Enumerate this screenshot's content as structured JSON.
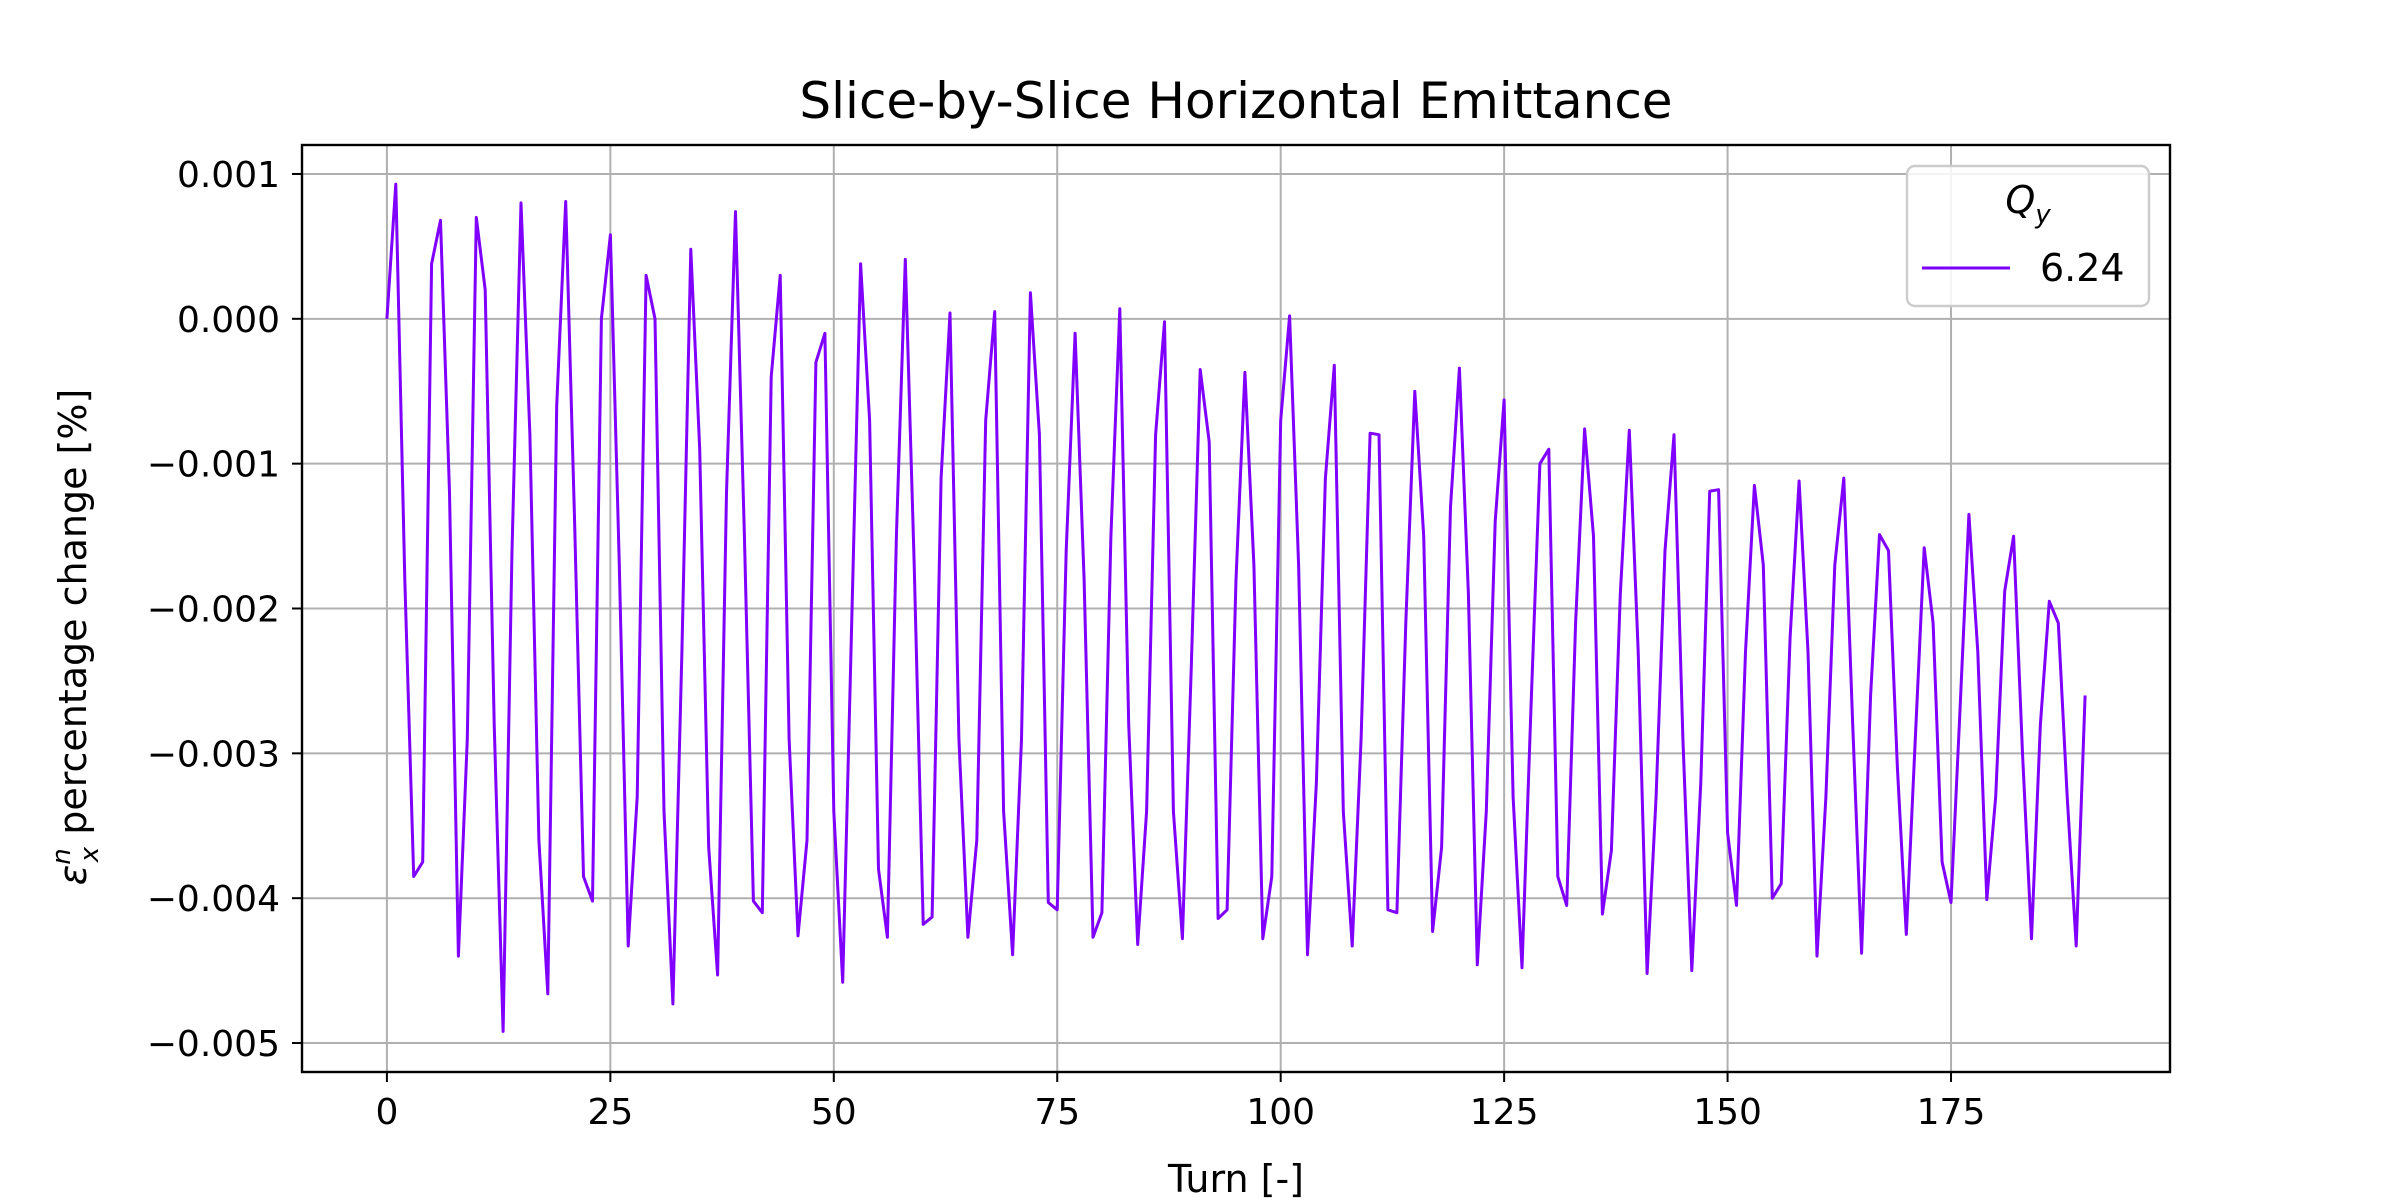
{
  "chart_data": {
    "type": "line",
    "title": "Slice-by-Slice Horizontal Emittance",
    "xlabel": "Turn [-]",
    "ylabel_base": "ε",
    "ylabel_sup": "n",
    "ylabel_sub": "x",
    "ylabel_rest": " percentage change [%]",
    "xlim": [
      -9.5,
      199.5
    ],
    "ylim": [
      -0.0052,
      0.0012
    ],
    "xticks": [
      0,
      25,
      50,
      75,
      100,
      125,
      150,
      175
    ],
    "xtick_labels": [
      "0",
      "25",
      "50",
      "75",
      "100",
      "125",
      "150",
      "175"
    ],
    "yticks": [
      0.001,
      0.0,
      -0.001,
      -0.002,
      -0.003,
      -0.004,
      -0.005
    ],
    "ytick_labels": [
      "0.001",
      "0.000",
      "−0.001",
      "−0.002",
      "−0.003",
      "−0.004",
      "−0.005"
    ],
    "grid": true,
    "legend": {
      "placement": "top-right",
      "title_base": "Q",
      "title_sub": "y"
    },
    "series": [
      {
        "name": "6.24",
        "color": "#7f00ff",
        "x": [
          0,
          1,
          2,
          3,
          4,
          5,
          6,
          7,
          8,
          9,
          10,
          11,
          12,
          13,
          14,
          15,
          16,
          17,
          18,
          19,
          20,
          21,
          22,
          23,
          24,
          25,
          26,
          27,
          28,
          29,
          30,
          31,
          32,
          33,
          34,
          35,
          36,
          37,
          38,
          39,
          40,
          41,
          42,
          43,
          44,
          45,
          46,
          47,
          48,
          49,
          50,
          51,
          52,
          53,
          54,
          55,
          56,
          57,
          58,
          59,
          60,
          61,
          62,
          63,
          64,
          65,
          66,
          67,
          68,
          69,
          70,
          71,
          72,
          73,
          74,
          75,
          76,
          77,
          78,
          79,
          80,
          81,
          82,
          83,
          84,
          85,
          86,
          87,
          88,
          89,
          90,
          91,
          92,
          93,
          94,
          95,
          96,
          97,
          98,
          99,
          100,
          101,
          102,
          103,
          104,
          105,
          106,
          107,
          108,
          109,
          110,
          111,
          112,
          113,
          114,
          115,
          116,
          117,
          118,
          119,
          120,
          121,
          122,
          123,
          124,
          125,
          126,
          127,
          128,
          129,
          130,
          131,
          132,
          133,
          134,
          135,
          136,
          137,
          138,
          139,
          140,
          141,
          142,
          143,
          144,
          145,
          146,
          147,
          148,
          149,
          150,
          151,
          152,
          153,
          154,
          155,
          156,
          157,
          158,
          159,
          160,
          161,
          162,
          163,
          164,
          165,
          166,
          167,
          168,
          169,
          170,
          171,
          172,
          173,
          174,
          175,
          176,
          177,
          178,
          179,
          180,
          181,
          182,
          183,
          184,
          185,
          186,
          187,
          188,
          189,
          190
        ],
        "y": [
          0.0,
          0.00093,
          -0.0018,
          -0.00385,
          -0.00375,
          0.00038,
          0.00068,
          -0.0012,
          -0.0044,
          -0.0029,
          0.0007,
          0.0002,
          -0.0028,
          -0.00492,
          -0.0016,
          0.0008,
          -0.0008,
          -0.0036,
          -0.00466,
          -0.0006,
          0.00081,
          -0.0014,
          -0.00385,
          -0.00402,
          0.0,
          0.00058,
          -0.0017,
          -0.00433,
          -0.0033,
          0.0003,
          0.0,
          -0.0034,
          -0.00473,
          -0.0023,
          0.00048,
          -0.0009,
          -0.00365,
          -0.00453,
          -0.0012,
          0.00074,
          -0.0015,
          -0.00402,
          -0.0041,
          -0.0004,
          0.0003,
          -0.0029,
          -0.00426,
          -0.0036,
          -0.0003,
          -0.0001,
          -0.0034,
          -0.00458,
          -0.0021,
          0.00038,
          -0.0007,
          -0.0038,
          -0.00427,
          -0.0015,
          0.00041,
          -0.0017,
          -0.00418,
          -0.00413,
          -0.0011,
          4e-05,
          -0.0029,
          -0.00427,
          -0.0036,
          -0.0007,
          5e-05,
          -0.0034,
          -0.00439,
          -0.0029,
          0.00018,
          -0.0008,
          -0.00403,
          -0.00408,
          -0.0016,
          -0.0001,
          -0.0018,
          -0.00427,
          -0.0041,
          -0.0015,
          7e-05,
          -0.0028,
          -0.00432,
          -0.0034,
          -0.0008,
          -2e-05,
          -0.0034,
          -0.00428,
          -0.0024,
          -0.00035,
          -0.00085,
          -0.00414,
          -0.00408,
          -0.0018,
          -0.00037,
          -0.0017,
          -0.00428,
          -0.00385,
          -0.0007,
          2e-05,
          -0.0017,
          -0.00439,
          -0.0032,
          -0.0011,
          -0.00032,
          -0.0034,
          -0.00433,
          -0.0029,
          -0.00079,
          -0.0008,
          -0.00408,
          -0.0041,
          -0.0021,
          -0.0005,
          -0.0015,
          -0.00423,
          -0.00365,
          -0.0013,
          -0.00034,
          -0.0019,
          -0.00446,
          -0.0034,
          -0.0014,
          -0.00056,
          -0.0033,
          -0.00448,
          -0.0027,
          -0.001,
          -0.0009,
          -0.00385,
          -0.00405,
          -0.0021,
          -0.00076,
          -0.0015,
          -0.00411,
          -0.00367,
          -0.0019,
          -0.00077,
          -0.0023,
          -0.00452,
          -0.0033,
          -0.0016,
          -0.0008,
          -0.0029,
          -0.0045,
          -0.0032,
          -0.00119,
          -0.00118,
          -0.00355,
          -0.00405,
          -0.0023,
          -0.00115,
          -0.0017,
          -0.004,
          -0.0039,
          -0.0022,
          -0.00112,
          -0.0023,
          -0.0044,
          -0.0033,
          -0.0017,
          -0.0011,
          -0.0028,
          -0.00438,
          -0.0026,
          -0.00149,
          -0.0016,
          -0.0031,
          -0.00425,
          -0.0029,
          -0.00158,
          -0.0021,
          -0.00375,
          -0.00403,
          -0.0027,
          -0.00135,
          -0.0023,
          -0.00401,
          -0.0033,
          -0.00188,
          -0.0015,
          -0.003,
          -0.00428,
          -0.0028,
          -0.00195,
          -0.0021,
          -0.0033,
          -0.00433,
          -0.0026
        ]
      }
    ]
  }
}
